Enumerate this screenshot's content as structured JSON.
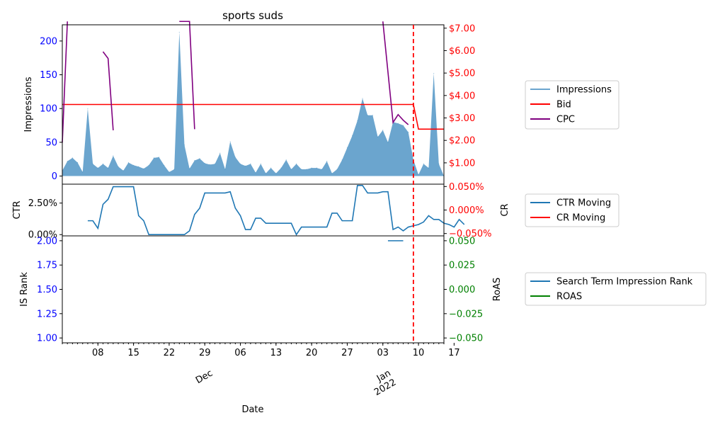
{
  "chart_data": {
    "type": "line",
    "title": "sports suds",
    "xlabel": "Date",
    "x_tick_labels": [
      "08",
      "15",
      "22",
      "29",
      "06",
      "13",
      "20",
      "27",
      "03",
      "10",
      "17"
    ],
    "x_month_labels": [
      "Dec",
      "Jan\n2022"
    ],
    "current_date_marker_day": 70,
    "panels": [
      {
        "name": "impressions",
        "ylabel_left": "Impressions",
        "ylim_left": [
          -12,
          224
        ],
        "yticks_left": [
          0,
          50,
          100,
          150,
          200
        ],
        "ytick_color_left": "#0000ff",
        "ylim_right": [
          0.05,
          7.15
        ],
        "yticks_right": [
          "$1.00",
          "$2.00",
          "$3.00",
          "$4.00",
          "$5.00",
          "$6.00",
          "$7.00"
        ],
        "ytick_values_right": [
          1,
          2,
          3,
          4,
          5,
          6,
          7
        ],
        "ytick_color_right": "#ff0000",
        "series": [
          {
            "name": "Impressions",
            "axis": "left",
            "kind": "area",
            "color": "#1f77b4",
            "values": [
              8,
              22,
              27,
              20,
              6,
              100,
              18,
              12,
              18,
              12,
              30,
              14,
              8,
              20,
              16,
              14,
              11,
              16,
              27,
              28,
              16,
              6,
              10,
              213,
              46,
              11,
              23,
              26,
              19,
              17,
              18,
              34,
              10,
              51,
              28,
              18,
              15,
              18,
              5,
              18,
              4,
              12,
              4,
              12,
              24,
              10,
              18,
              10,
              10,
              12,
              12,
              10,
              22,
              4,
              10,
              24,
              42,
              60,
              82,
              115,
              90,
              90,
              58,
              68,
              50,
              80,
              78,
              75,
              65,
              24,
              2,
              18,
              12,
              152,
              18,
              0
            ]
          },
          {
            "name": "Bid",
            "axis": "right",
            "kind": "line",
            "color": "#ff0000",
            "values": [
              3.6,
              3.6,
              3.6,
              3.6,
              3.6,
              3.6,
              3.6,
              3.6,
              3.6,
              3.6,
              3.6,
              3.6,
              3.6,
              3.6,
              3.6,
              3.6,
              3.6,
              3.6,
              3.6,
              3.6,
              3.6,
              3.6,
              3.6,
              3.6,
              3.6,
              3.6,
              3.6,
              3.6,
              3.6,
              3.6,
              3.6,
              3.6,
              3.6,
              3.6,
              3.6,
              3.6,
              3.6,
              3.6,
              3.6,
              3.6,
              3.6,
              3.6,
              3.6,
              3.6,
              3.6,
              3.6,
              3.6,
              3.6,
              3.6,
              3.6,
              3.6,
              3.6,
              3.6,
              3.6,
              3.6,
              3.6,
              3.6,
              3.6,
              3.6,
              3.6,
              3.6,
              3.6,
              3.6,
              3.6,
              3.6,
              3.6,
              3.6,
              3.6,
              3.6,
              3.6,
              2.5,
              2.5,
              2.5,
              2.5,
              2.5,
              2.5
            ]
          },
          {
            "name": "CPC",
            "axis": "right",
            "kind": "line",
            "color": "#800080",
            "segments": [
              [
                [
                  1,
                  1.9
                ],
                [
                  2,
                  7.3
                ]
              ],
              [
                [
                  9,
                  5.95
                ],
                [
                  10,
                  5.65
                ],
                [
                  11,
                  2.45
                ]
              ],
              [
                [
                  24,
                  7.3
                ],
                [
                  26,
                  7.3
                ],
                [
                  27,
                  2.5
                ]
              ],
              [
                [
                  64,
                  7.3
                ],
                [
                  66,
                  2.8
                ],
                [
                  67,
                  3.15
                ],
                [
                  68,
                  2.9
                ],
                [
                  69,
                  2.7
                ]
              ]
            ]
          }
        ]
      },
      {
        "name": "ctr",
        "ylabel_left": "CTR",
        "ylabel_right": "CR",
        "ylim_left": [
          -0.1,
          4.0
        ],
        "yticks_left": [
          "0.00%",
          "2.50%"
        ],
        "ytick_values_left": [
          0,
          2.5
        ],
        "ytick_color_left": "#000000",
        "ylim_right": [
          -0.055,
          0.055
        ],
        "yticks_right": [
          "−0.050%",
          "0.000%",
          "0.050%"
        ],
        "ytick_values_right": [
          -0.05,
          0,
          0.05
        ],
        "ytick_color_right": "#ff0000",
        "series": [
          {
            "name": "CTR Moving",
            "axis": "left",
            "kind": "line",
            "color": "#1f77b4",
            "start_day": 6,
            "values": [
              1.1,
              1.1,
              0.5,
              2.4,
              2.8,
              3.8,
              3.8,
              3.8,
              3.8,
              3.8,
              1.5,
              1.1,
              0.0,
              0.0,
              0.0,
              0.0,
              0.0,
              0.0,
              0.0,
              0.0,
              0.3,
              1.6,
              2.1,
              3.3,
              3.3,
              3.3,
              3.3,
              3.3,
              3.4,
              2.1,
              1.5,
              0.4,
              0.4,
              1.3,
              1.3,
              0.9,
              0.9,
              0.9,
              0.9,
              0.9,
              0.9,
              0.0,
              0.6,
              0.6,
              0.6,
              0.6,
              0.6,
              0.6,
              1.7,
              1.7,
              1.1,
              1.1,
              1.1,
              3.9,
              3.9,
              3.3,
              3.3,
              3.3,
              3.4,
              3.4,
              0.4,
              0.6,
              0.3,
              0.6,
              0.7,
              0.8,
              1.0,
              1.5,
              1.2,
              1.2,
              0.9,
              0.8,
              0.6,
              1.2,
              0.8
            ]
          },
          {
            "name": "CR Moving",
            "axis": "right",
            "kind": "line",
            "color": "#ff0000",
            "values": []
          }
        ]
      },
      {
        "name": "rank",
        "ylabel_left": "IS Rank",
        "ylabel_right": "RoAS",
        "ylim_left": [
          0.95,
          2.05
        ],
        "yticks_left": [
          "1.00",
          "1.25",
          "1.50",
          "1.75",
          "2.00"
        ],
        "ytick_values_left": [
          1.0,
          1.25,
          1.5,
          1.75,
          2.0
        ],
        "ytick_color_left": "#0000ff",
        "ylim_right": [
          -0.055,
          0.055
        ],
        "yticks_right": [
          "−0.050",
          "−0.025",
          "0.000",
          "0.025",
          "0.050"
        ],
        "ytick_values_right": [
          -0.05,
          -0.025,
          0,
          0.025,
          0.05
        ],
        "ytick_color_right": "#008000",
        "series": [
          {
            "name": "Search Term Impression Rank",
            "axis": "left",
            "kind": "line",
            "color": "#1f77b4",
            "points": [
              [
                65,
                2.0
              ],
              [
                68,
                2.0
              ]
            ]
          },
          {
            "name": "ROAS",
            "axis": "right",
            "kind": "line",
            "color": "#008000",
            "values": []
          }
        ]
      }
    ],
    "legends": [
      {
        "items": [
          {
            "label": "Impressions",
            "color": "#1f77b4"
          },
          {
            "label": "Bid",
            "color": "#ff0000"
          },
          {
            "label": "CPC",
            "color": "#800080"
          }
        ]
      },
      {
        "items": [
          {
            "label": "CTR Moving",
            "color": "#1f77b4"
          },
          {
            "label": "CR Moving",
            "color": "#ff0000"
          }
        ]
      },
      {
        "items": [
          {
            "label": "Search Term Impression Rank",
            "color": "#1f77b4"
          },
          {
            "label": "ROAS",
            "color": "#008000"
          }
        ]
      }
    ]
  }
}
